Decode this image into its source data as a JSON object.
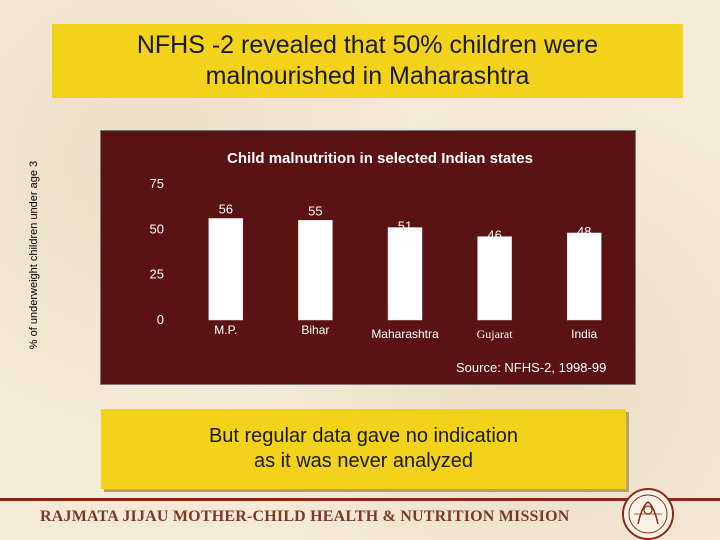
{
  "slide": {
    "title_line1": "NFHS -2 revealed that 50% children were",
    "title_line2": "malnourished in Maharashtra",
    "source": "Source: NFHS-2, 1998-99",
    "note_line1": "But regular data gave no indication",
    "note_line2": "as it was never analyzed",
    "footer": "RAJMATA JIJAU MOTHER-CHILD HEALTH & NUTRITION MISSION"
  },
  "colors": {
    "title_bg": "#f2d21a",
    "chart_bg": "#5a1212",
    "bar_fill": "#ffffff",
    "footer_text": "#7a3a2a"
  },
  "icons": {
    "logo": "mission-emblem-icon"
  },
  "chart_data": {
    "type": "bar",
    "title": "Child malnutrition in selected Indian states",
    "ylabel": "% of underweight children under age 3",
    "xlabel": "",
    "categories": [
      "M.P.",
      "Bihar",
      "Maharashtra",
      "Gujarat",
      "India"
    ],
    "values": [
      56,
      55,
      51,
      46,
      48
    ],
    "ylim": [
      0,
      75
    ],
    "yticks": [
      0,
      25,
      50,
      75
    ],
    "grid": false,
    "legend": "none",
    "data_labels": true
  }
}
